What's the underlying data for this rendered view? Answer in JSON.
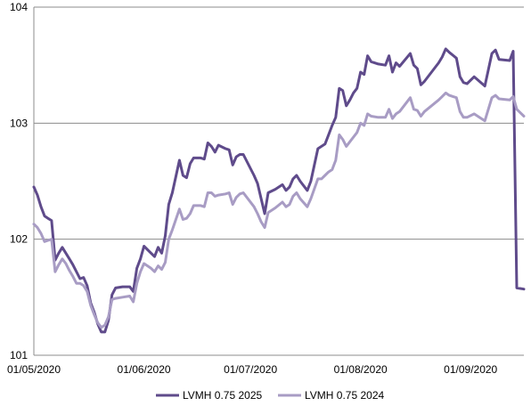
{
  "chart_data": {
    "type": "line",
    "xlabel": "",
    "ylabel": "",
    "x_range": [
      "2020-05-01",
      "2020-09-16"
    ],
    "ylim": [
      101,
      104
    ],
    "y_ticks": [
      "101",
      "102",
      "103",
      "104"
    ],
    "x_ticks": [
      {
        "date": "2020-05-01",
        "label": "01/05/2020"
      },
      {
        "date": "2020-06-01",
        "label": "01/06/2020"
      },
      {
        "date": "2020-07-01",
        "label": "01/07/2020"
      },
      {
        "date": "2020-08-01",
        "label": "01/08/2020"
      },
      {
        "date": "2020-09-01",
        "label": "01/09/2020"
      }
    ],
    "grid": "horizontal",
    "legend_position": "bottom",
    "series": [
      {
        "name": "LVMH 0.75 2025",
        "color": "#5f4b8b",
        "points": [
          [
            "2020-05-01",
            102.45
          ],
          [
            "2020-05-02",
            102.38
          ],
          [
            "2020-05-03",
            102.28
          ],
          [
            "2020-05-04",
            102.2
          ],
          [
            "2020-05-05",
            102.18
          ],
          [
            "2020-05-06",
            102.16
          ],
          [
            "2020-05-07",
            101.82
          ],
          [
            "2020-05-08",
            101.88
          ],
          [
            "2020-05-09",
            101.93
          ],
          [
            "2020-05-10",
            101.88
          ],
          [
            "2020-05-11",
            101.83
          ],
          [
            "2020-05-12",
            101.78
          ],
          [
            "2020-05-13",
            101.72
          ],
          [
            "2020-05-14",
            101.66
          ],
          [
            "2020-05-15",
            101.67
          ],
          [
            "2020-05-16",
            101.6
          ],
          [
            "2020-05-17",
            101.45
          ],
          [
            "2020-05-18",
            101.37
          ],
          [
            "2020-05-19",
            101.27
          ],
          [
            "2020-05-20",
            101.2
          ],
          [
            "2020-05-21",
            101.2
          ],
          [
            "2020-05-22",
            101.3
          ],
          [
            "2020-05-23",
            101.52
          ],
          [
            "2020-05-24",
            101.58
          ],
          [
            "2020-05-26",
            101.59
          ],
          [
            "2020-05-28",
            101.59
          ],
          [
            "2020-05-29",
            101.55
          ],
          [
            "2020-05-30",
            101.75
          ],
          [
            "2020-05-31",
            101.83
          ],
          [
            "2020-06-01",
            101.94
          ],
          [
            "2020-06-03",
            101.88
          ],
          [
            "2020-06-04",
            101.85
          ],
          [
            "2020-06-05",
            101.93
          ],
          [
            "2020-06-06",
            101.88
          ],
          [
            "2020-06-07",
            102.03
          ],
          [
            "2020-06-08",
            102.3
          ],
          [
            "2020-06-09",
            102.4
          ],
          [
            "2020-06-11",
            102.68
          ],
          [
            "2020-06-12",
            102.55
          ],
          [
            "2020-06-13",
            102.53
          ],
          [
            "2020-06-14",
            102.65
          ],
          [
            "2020-06-15",
            102.7
          ],
          [
            "2020-06-17",
            102.7
          ],
          [
            "2020-06-18",
            102.69
          ],
          [
            "2020-06-19",
            102.83
          ],
          [
            "2020-06-20",
            102.8
          ],
          [
            "2020-06-21",
            102.75
          ],
          [
            "2020-06-22",
            102.81
          ],
          [
            "2020-06-24",
            102.78
          ],
          [
            "2020-06-25",
            102.77
          ],
          [
            "2020-06-26",
            102.64
          ],
          [
            "2020-06-27",
            102.71
          ],
          [
            "2020-06-28",
            102.73
          ],
          [
            "2020-06-29",
            102.73
          ],
          [
            "2020-07-02",
            102.55
          ],
          [
            "2020-07-03",
            102.48
          ],
          [
            "2020-07-04",
            102.35
          ],
          [
            "2020-07-05",
            102.22
          ],
          [
            "2020-07-06",
            102.4
          ],
          [
            "2020-07-08",
            102.43
          ],
          [
            "2020-07-10",
            102.47
          ],
          [
            "2020-07-11",
            102.42
          ],
          [
            "2020-07-12",
            102.45
          ],
          [
            "2020-07-13",
            102.52
          ],
          [
            "2020-07-14",
            102.55
          ],
          [
            "2020-07-15",
            102.5
          ],
          [
            "2020-07-17",
            102.42
          ],
          [
            "2020-07-18",
            102.5
          ],
          [
            "2020-07-20",
            102.78
          ],
          [
            "2020-07-21",
            102.8
          ],
          [
            "2020-07-22",
            102.82
          ],
          [
            "2020-07-23",
            102.9
          ],
          [
            "2020-07-24",
            102.98
          ],
          [
            "2020-07-25",
            103.05
          ],
          [
            "2020-07-26",
            103.3
          ],
          [
            "2020-07-27",
            103.28
          ],
          [
            "2020-07-28",
            103.15
          ],
          [
            "2020-07-29",
            103.2
          ],
          [
            "2020-07-30",
            103.26
          ],
          [
            "2020-07-31",
            103.3
          ],
          [
            "2020-08-01",
            103.44
          ],
          [
            "2020-08-02",
            103.42
          ],
          [
            "2020-08-03",
            103.58
          ],
          [
            "2020-08-04",
            103.53
          ],
          [
            "2020-08-06",
            103.51
          ],
          [
            "2020-08-08",
            103.5
          ],
          [
            "2020-08-09",
            103.58
          ],
          [
            "2020-08-10",
            103.44
          ],
          [
            "2020-08-11",
            103.52
          ],
          [
            "2020-08-12",
            103.49
          ],
          [
            "2020-08-15",
            103.6
          ],
          [
            "2020-08-16",
            103.5
          ],
          [
            "2020-08-17",
            103.47
          ],
          [
            "2020-08-18",
            103.33
          ],
          [
            "2020-08-19",
            103.36
          ],
          [
            "2020-08-23",
            103.52
          ],
          [
            "2020-08-24",
            103.57
          ],
          [
            "2020-08-25",
            103.64
          ],
          [
            "2020-08-26",
            103.61
          ],
          [
            "2020-08-28",
            103.56
          ],
          [
            "2020-08-29",
            103.4
          ],
          [
            "2020-08-30",
            103.35
          ],
          [
            "2020-08-31",
            103.34
          ],
          [
            "2020-09-02",
            103.4
          ],
          [
            "2020-09-05",
            103.32
          ],
          [
            "2020-09-07",
            103.6
          ],
          [
            "2020-09-08",
            103.63
          ],
          [
            "2020-09-09",
            103.55
          ],
          [
            "2020-09-12",
            103.54
          ],
          [
            "2020-09-13",
            103.62
          ],
          [
            "2020-09-14",
            101.58
          ],
          [
            "2020-09-16",
            101.57
          ]
        ]
      },
      {
        "name": "LVMH 0.75 2024",
        "color": "#a89cc4",
        "points": [
          [
            "2020-05-01",
            102.13
          ],
          [
            "2020-05-02",
            102.1
          ],
          [
            "2020-05-03",
            102.05
          ],
          [
            "2020-05-04",
            101.98
          ],
          [
            "2020-05-05",
            101.99
          ],
          [
            "2020-05-06",
            102.0
          ],
          [
            "2020-05-07",
            101.72
          ],
          [
            "2020-05-08",
            101.78
          ],
          [
            "2020-05-09",
            101.83
          ],
          [
            "2020-05-10",
            101.79
          ],
          [
            "2020-05-11",
            101.73
          ],
          [
            "2020-05-12",
            101.68
          ],
          [
            "2020-05-13",
            101.62
          ],
          [
            "2020-05-14",
            101.62
          ],
          [
            "2020-05-15",
            101.6
          ],
          [
            "2020-05-16",
            101.55
          ],
          [
            "2020-05-17",
            101.43
          ],
          [
            "2020-05-18",
            101.35
          ],
          [
            "2020-05-19",
            101.28
          ],
          [
            "2020-05-20",
            101.24
          ],
          [
            "2020-05-21",
            101.26
          ],
          [
            "2020-05-22",
            101.33
          ],
          [
            "2020-05-23",
            101.48
          ],
          [
            "2020-05-24",
            101.49
          ],
          [
            "2020-05-26",
            101.5
          ],
          [
            "2020-05-28",
            101.51
          ],
          [
            "2020-05-29",
            101.46
          ],
          [
            "2020-05-30",
            101.62
          ],
          [
            "2020-05-31",
            101.72
          ],
          [
            "2020-06-01",
            101.79
          ],
          [
            "2020-06-03",
            101.75
          ],
          [
            "2020-06-04",
            101.72
          ],
          [
            "2020-06-05",
            101.77
          ],
          [
            "2020-06-06",
            101.74
          ],
          [
            "2020-06-07",
            101.8
          ],
          [
            "2020-06-08",
            102.0
          ],
          [
            "2020-06-09",
            102.08
          ],
          [
            "2020-06-11",
            102.26
          ],
          [
            "2020-06-12",
            102.17
          ],
          [
            "2020-06-13",
            102.18
          ],
          [
            "2020-06-14",
            102.22
          ],
          [
            "2020-06-15",
            102.29
          ],
          [
            "2020-06-17",
            102.29
          ],
          [
            "2020-06-18",
            102.28
          ],
          [
            "2020-06-19",
            102.4
          ],
          [
            "2020-06-20",
            102.4
          ],
          [
            "2020-06-21",
            102.37
          ],
          [
            "2020-06-22",
            102.38
          ],
          [
            "2020-06-24",
            102.39
          ],
          [
            "2020-06-25",
            102.4
          ],
          [
            "2020-06-26",
            102.3
          ],
          [
            "2020-06-27",
            102.36
          ],
          [
            "2020-06-28",
            102.39
          ],
          [
            "2020-06-29",
            102.4
          ],
          [
            "2020-07-02",
            102.28
          ],
          [
            "2020-07-03",
            102.22
          ],
          [
            "2020-07-04",
            102.15
          ],
          [
            "2020-07-05",
            102.1
          ],
          [
            "2020-07-06",
            102.23
          ],
          [
            "2020-07-08",
            102.27
          ],
          [
            "2020-07-10",
            102.32
          ],
          [
            "2020-07-11",
            102.28
          ],
          [
            "2020-07-12",
            102.3
          ],
          [
            "2020-07-13",
            102.37
          ],
          [
            "2020-07-14",
            102.4
          ],
          [
            "2020-07-15",
            102.35
          ],
          [
            "2020-07-17",
            102.28
          ],
          [
            "2020-07-18",
            102.35
          ],
          [
            "2020-07-20",
            102.52
          ],
          [
            "2020-07-21",
            102.52
          ],
          [
            "2020-07-22",
            102.55
          ],
          [
            "2020-07-23",
            102.58
          ],
          [
            "2020-07-24",
            102.6
          ],
          [
            "2020-07-25",
            102.68
          ],
          [
            "2020-07-26",
            102.9
          ],
          [
            "2020-07-27",
            102.86
          ],
          [
            "2020-07-28",
            102.8
          ],
          [
            "2020-07-29",
            102.84
          ],
          [
            "2020-07-30",
            102.88
          ],
          [
            "2020-07-31",
            102.92
          ],
          [
            "2020-08-01",
            103.0
          ],
          [
            "2020-08-02",
            102.98
          ],
          [
            "2020-08-03",
            103.08
          ],
          [
            "2020-08-04",
            103.06
          ],
          [
            "2020-08-06",
            103.05
          ],
          [
            "2020-08-08",
            103.05
          ],
          [
            "2020-08-09",
            103.12
          ],
          [
            "2020-08-10",
            103.04
          ],
          [
            "2020-08-11",
            103.08
          ],
          [
            "2020-08-12",
            103.1
          ],
          [
            "2020-08-15",
            103.22
          ],
          [
            "2020-08-16",
            103.12
          ],
          [
            "2020-08-17",
            103.11
          ],
          [
            "2020-08-18",
            103.06
          ],
          [
            "2020-08-19",
            103.1
          ],
          [
            "2020-08-23",
            103.2
          ],
          [
            "2020-08-24",
            103.23
          ],
          [
            "2020-08-25",
            103.26
          ],
          [
            "2020-08-26",
            103.24
          ],
          [
            "2020-08-28",
            103.22
          ],
          [
            "2020-08-29",
            103.1
          ],
          [
            "2020-08-30",
            103.05
          ],
          [
            "2020-08-31",
            103.05
          ],
          [
            "2020-09-02",
            103.08
          ],
          [
            "2020-09-05",
            103.02
          ],
          [
            "2020-09-07",
            103.22
          ],
          [
            "2020-09-08",
            103.24
          ],
          [
            "2020-09-09",
            103.21
          ],
          [
            "2020-09-12",
            103.2
          ],
          [
            "2020-09-13",
            103.23
          ],
          [
            "2020-09-14",
            103.12
          ],
          [
            "2020-09-16",
            103.06
          ]
        ]
      }
    ]
  }
}
